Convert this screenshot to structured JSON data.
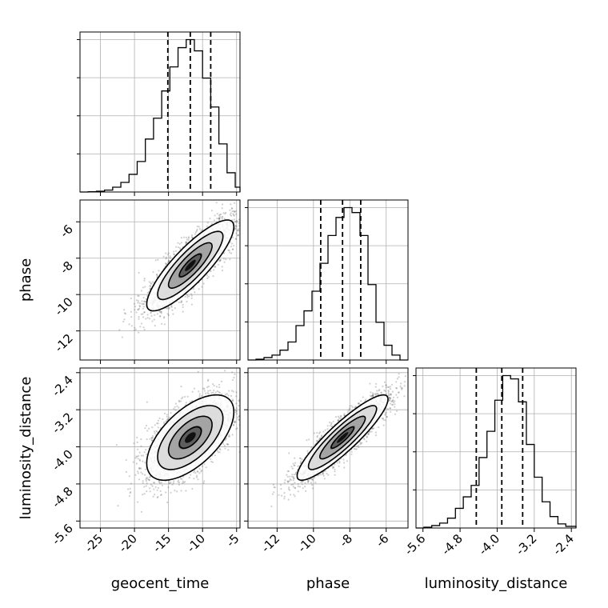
{
  "chart_data": {
    "type": "corner",
    "parameters": [
      "geocent_time",
      "phase",
      "luminosity_distance"
    ],
    "axis_labels": {
      "x": [
        "geocent_time",
        "phase",
        "luminosity_distance"
      ],
      "y": [
        "",
        "phase",
        "luminosity_distance"
      ]
    },
    "ranges": {
      "geocent_time": [
        -28,
        -4.5
      ],
      "phase": [
        -13.6,
        -4.8
      ],
      "luminosity_distance": [
        -5.75,
        -2.3
      ]
    },
    "ticks": {
      "geocent_time": [
        "-25",
        "-20",
        "-15",
        "-10",
        "-5"
      ],
      "phase": [
        "-12",
        "-10",
        "-8",
        "-6"
      ],
      "luminosity_distance": [
        "-5.6",
        "-4.8",
        "-4.0",
        "-3.2",
        "-2.4"
      ]
    },
    "quantiles": {
      "geocent_time": [
        -15.1,
        -11.8,
        -8.8
      ],
      "phase": [
        -9.6,
        -8.4,
        -7.4
      ],
      "luminosity_distance": [
        -4.45,
        -3.9,
        -3.45
      ]
    },
    "marginals": {
      "geocent_time": {
        "edges": [
          -28,
          -26.8,
          -25.6,
          -24.4,
          -23.2,
          -22,
          -20.8,
          -19.6,
          -18.4,
          -17.2,
          -16,
          -14.8,
          -13.6,
          -12.4,
          -11.2,
          -10,
          -8.8,
          -7.6,
          -6.4,
          -5.2,
          -4.5
        ],
        "counts": [
          0,
          0.2,
          0.5,
          1.2,
          3,
          6,
          11,
          19,
          33,
          46,
          63,
          78,
          90,
          95,
          88,
          71,
          53,
          30,
          12,
          3
        ]
      },
      "phase": {
        "edges": [
          -13.6,
          -13.16,
          -12.72,
          -12.28,
          -11.84,
          -11.4,
          -10.96,
          -10.52,
          -10.08,
          -9.64,
          -9.2,
          -8.76,
          -8.32,
          -7.88,
          -7.44,
          -7.0,
          -6.56,
          -6.12,
          -5.68,
          -5.24,
          -4.8
        ],
        "counts": [
          0,
          0.5,
          1.5,
          3,
          6,
          11,
          21,
          30,
          42,
          59,
          76,
          87,
          93,
          90,
          76,
          46,
          23,
          9,
          3,
          0
        ]
      },
      "luminosity_distance": {
        "edges": [
          -5.75,
          -5.58,
          -5.41,
          -5.24,
          -5.07,
          -4.9,
          -4.73,
          -4.56,
          -4.39,
          -4.22,
          -4.05,
          -3.88,
          -3.71,
          -3.54,
          -3.37,
          -3.2,
          -3.03,
          -2.86,
          -2.69,
          -2.52,
          -2.3
        ],
        "counts": [
          0,
          0.5,
          1.5,
          3,
          6,
          12,
          19,
          26,
          43,
          59,
          78,
          93,
          91,
          77,
          51,
          31,
          16,
          7,
          2.5,
          1
        ]
      }
    },
    "joint": [
      {
        "x": "geocent_time",
        "y": "phase",
        "mean": [
          -11.8,
          -8.4
        ],
        "sd": [
          3.2,
          1.25
        ],
        "corr": 0.85,
        "sample_size": 2600
      },
      {
        "x": "geocent_time",
        "y": "luminosity_distance",
        "mean": [
          -11.8,
          -3.8
        ],
        "sd": [
          3.2,
          0.46
        ],
        "corr": 0.6,
        "sample_size": 2600
      },
      {
        "x": "phase",
        "y": "luminosity_distance",
        "mean": [
          -8.4,
          -3.8
        ],
        "sd": [
          1.25,
          0.46
        ],
        "corr": 0.9,
        "sample_size": 2600
      }
    ],
    "grid": true
  }
}
